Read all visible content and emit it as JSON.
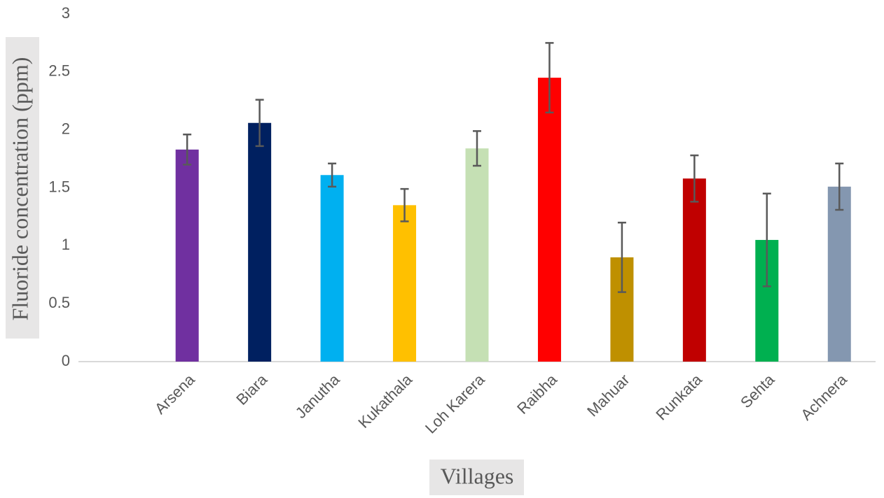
{
  "chart_data": {
    "type": "bar",
    "x_label": "Villages",
    "y_label": "Fluoride concentration (ppm)",
    "categories": [
      null,
      "Arsena",
      "Biara",
      "Janutha",
      "Kukathala",
      "Loh Karera",
      "Raibha",
      "Mahuar",
      "Runkata",
      "Sehta",
      "Achnera"
    ],
    "values": [
      null,
      1.83,
      2.06,
      1.61,
      1.35,
      1.84,
      2.45,
      0.9,
      1.58,
      1.05,
      1.51
    ],
    "errors": [
      null,
      0.13,
      0.2,
      0.1,
      0.14,
      0.15,
      0.3,
      0.3,
      0.2,
      0.4,
      0.2
    ],
    "colors": [
      null,
      "#7030a0",
      "#002060",
      "#00b0f0",
      "#ffc000",
      "#c5e0b4",
      "#ff0000",
      "#bf9000",
      "#c00000",
      "#00b050",
      "#8497b0"
    ],
    "ylim": [
      0,
      3
    ],
    "yticks": [
      0,
      0.5,
      1,
      1.5,
      2,
      2.5,
      3
    ],
    "grid": false
  }
}
